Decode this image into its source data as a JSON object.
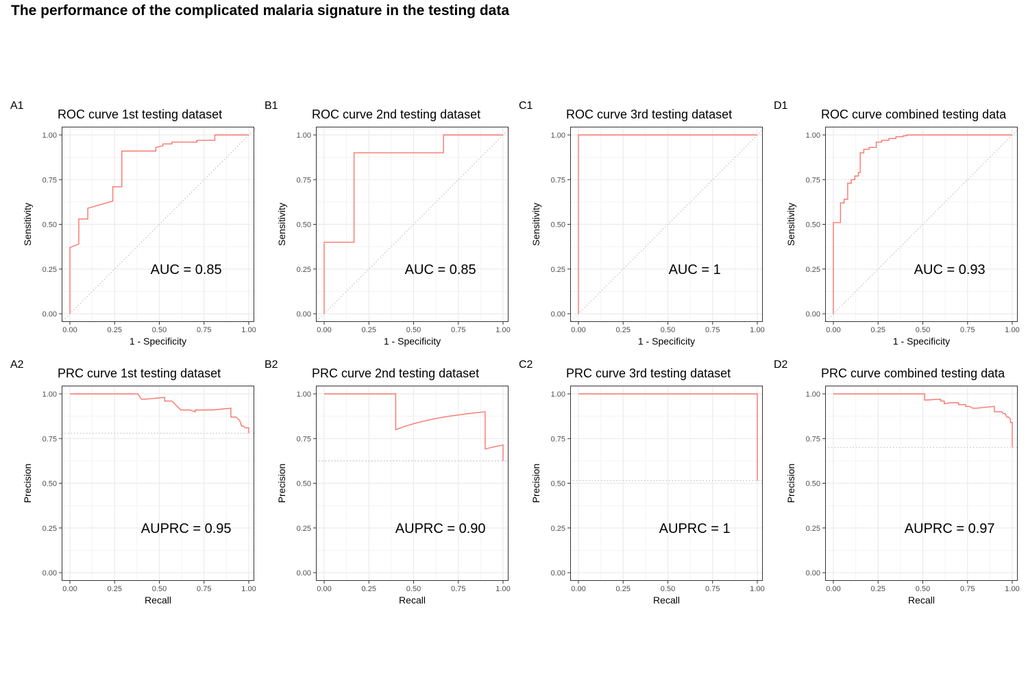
{
  "main_title": "The performance of the complicated malaria signature in the testing data",
  "colors": {
    "curve": "#f8766d",
    "reference": "#bdbdbd",
    "grid_major": "#ebebeb",
    "grid_minor": "#f3f3f3",
    "panel_border": "#333333",
    "tick_text": "#4d4d4d"
  },
  "chart_data": [
    {
      "type": "line",
      "tag": "A1",
      "title": "ROC curve 1st testing dataset",
      "xlabel": "1 - Specificity",
      "ylabel": "Sensitivity",
      "xlim": [
        0,
        1
      ],
      "ylim": [
        0,
        1
      ],
      "xticks": [
        "0.00",
        "0.25",
        "0.50",
        "0.75",
        "1.00"
      ],
      "yticks": [
        "0.00",
        "0.25",
        "0.50",
        "0.75",
        "1.00"
      ],
      "grid": true,
      "annotation": "AUC = 0.85",
      "reference": "diagonal",
      "series": [
        {
          "x": [
            0,
            0,
            0.05,
            0.05,
            0.1,
            0.1,
            0.24,
            0.24,
            0.29,
            0.29,
            0.48,
            0.48,
            0.52,
            0.52,
            0.57,
            0.57,
            0.71,
            0.71,
            0.81,
            0.81,
            1.0
          ],
          "y": [
            0,
            0.37,
            0.39,
            0.53,
            0.53,
            0.59,
            0.63,
            0.71,
            0.71,
            0.91,
            0.91,
            0.93,
            0.94,
            0.95,
            0.95,
            0.96,
            0.96,
            0.97,
            0.97,
            1.0,
            1.0
          ]
        }
      ]
    },
    {
      "type": "line",
      "tag": "B1",
      "title": "ROC curve 2nd testing dataset",
      "xlabel": "1 - Specificity",
      "ylabel": "Sensitivity",
      "xlim": [
        0,
        1
      ],
      "ylim": [
        0,
        1
      ],
      "xticks": [
        "0.00",
        "0.25",
        "0.50",
        "0.75",
        "1.00"
      ],
      "yticks": [
        "0.00",
        "0.25",
        "0.50",
        "0.75",
        "1.00"
      ],
      "grid": true,
      "annotation": "AUC = 0.85",
      "reference": "diagonal",
      "series": [
        {
          "x": [
            0,
            0,
            0.167,
            0.167,
            0.667,
            0.667,
            1.0
          ],
          "y": [
            0,
            0.4,
            0.4,
            0.9,
            0.9,
            1.0,
            1.0
          ]
        }
      ]
    },
    {
      "type": "line",
      "tag": "C1",
      "title": "ROC curve 3rd testing dataset",
      "xlabel": "1 - Specificity",
      "ylabel": "Sensitivity",
      "xlim": [
        0,
        1
      ],
      "ylim": [
        0,
        1
      ],
      "xticks": [
        "0.00",
        "0.25",
        "0.50",
        "0.75",
        "1.00"
      ],
      "yticks": [
        "0.00",
        "0.25",
        "0.50",
        "0.75",
        "1.00"
      ],
      "grid": true,
      "annotation": "AUC = 1",
      "reference": "diagonal",
      "series": [
        {
          "x": [
            0,
            0,
            1.0
          ],
          "y": [
            0,
            1.0,
            1.0
          ]
        }
      ]
    },
    {
      "type": "line",
      "tag": "D1",
      "title": "ROC curve combined testing data",
      "xlabel": "1 - Specificity",
      "ylabel": "Sensitivity",
      "xlim": [
        0,
        1
      ],
      "ylim": [
        0,
        1
      ],
      "xticks": [
        "0.00",
        "0.25",
        "0.50",
        "0.75",
        "1.00"
      ],
      "yticks": [
        "0.00",
        "0.25",
        "0.50",
        "0.75",
        "1.00"
      ],
      "grid": true,
      "annotation": "AUC = 0.93",
      "reference": "diagonal",
      "series": [
        {
          "x": [
            0,
            0,
            0.04,
            0.04,
            0.06,
            0.06,
            0.08,
            0.08,
            0.1,
            0.1,
            0.12,
            0.12,
            0.14,
            0.14,
            0.15,
            0.15,
            0.17,
            0.17,
            0.2,
            0.2,
            0.24,
            0.24,
            0.27,
            0.27,
            0.31,
            0.31,
            0.35,
            0.35,
            0.39,
            0.39,
            0.41,
            0.41,
            1.0
          ],
          "y": [
            0,
            0.51,
            0.51,
            0.62,
            0.62,
            0.64,
            0.64,
            0.73,
            0.73,
            0.75,
            0.75,
            0.77,
            0.77,
            0.79,
            0.79,
            0.9,
            0.9,
            0.92,
            0.92,
            0.93,
            0.93,
            0.96,
            0.96,
            0.97,
            0.97,
            0.98,
            0.98,
            0.99,
            0.99,
            0.995,
            0.995,
            1.0,
            1.0
          ]
        }
      ]
    },
    {
      "type": "line",
      "tag": "A2",
      "title": "PRC curve 1st testing dataset",
      "xlabel": "Recall",
      "ylabel": "Precision",
      "xlim": [
        0,
        1
      ],
      "ylim": [
        0,
        1
      ],
      "xticks": [
        "0.00",
        "0.25",
        "0.50",
        "0.75",
        "1.00"
      ],
      "yticks": [
        "0.00",
        "0.25",
        "0.50",
        "0.75",
        "1.00"
      ],
      "grid": true,
      "annotation": "AUPRC = 0.95",
      "reference": {
        "horizontal": 0.78
      },
      "series": [
        {
          "x": [
            0,
            0.38,
            0.4,
            0.42,
            0.53,
            0.53,
            0.57,
            0.62,
            0.67,
            0.7,
            0.7,
            0.8,
            0.9,
            0.9,
            0.93,
            0.95,
            0.96,
            0.97,
            0.98,
            1.0,
            1.0
          ],
          "y": [
            1.0,
            1.0,
            0.97,
            0.97,
            0.98,
            0.96,
            0.96,
            0.91,
            0.91,
            0.9,
            0.91,
            0.91,
            0.92,
            0.87,
            0.87,
            0.85,
            0.82,
            0.82,
            0.81,
            0.81,
            0.78
          ]
        }
      ]
    },
    {
      "type": "line",
      "tag": "B2",
      "title": "PRC curve 2nd testing dataset",
      "xlabel": "Recall",
      "ylabel": "Precision",
      "xlim": [
        0,
        1
      ],
      "ylim": [
        0,
        1
      ],
      "xticks": [
        "0.00",
        "0.25",
        "0.50",
        "0.75",
        "1.00"
      ],
      "yticks": [
        "0.00",
        "0.25",
        "0.50",
        "0.75",
        "1.00"
      ],
      "grid": true,
      "annotation": "AUPRC = 0.90",
      "reference": {
        "horizontal": 0.625
      },
      "series": [
        {
          "x": [
            0,
            0.4,
            0.4,
            0.45,
            0.5,
            0.55,
            0.6,
            0.65,
            0.7,
            0.75,
            0.8,
            0.85,
            0.9,
            0.9,
            0.95,
            1.0,
            1.0
          ],
          "y": [
            1.0,
            1.0,
            0.8,
            0.818,
            0.833,
            0.846,
            0.857,
            0.867,
            0.875,
            0.882,
            0.889,
            0.895,
            0.9,
            0.692,
            0.704,
            0.714,
            0.625
          ]
        }
      ]
    },
    {
      "type": "line",
      "tag": "C2",
      "title": "PRC curve 3rd testing dataset",
      "xlabel": "Recall",
      "ylabel": "Precision",
      "xlim": [
        0,
        1
      ],
      "ylim": [
        0,
        1
      ],
      "xticks": [
        "0.00",
        "0.25",
        "0.50",
        "0.75",
        "1.00"
      ],
      "yticks": [
        "0.00",
        "0.25",
        "0.50",
        "0.75",
        "1.00"
      ],
      "grid": true,
      "annotation": "AUPRC = 1",
      "reference": {
        "horizontal": 0.515
      },
      "series": [
        {
          "x": [
            0,
            1.0,
            1.0
          ],
          "y": [
            1.0,
            1.0,
            0.515
          ]
        }
      ]
    },
    {
      "type": "line",
      "tag": "D2",
      "title": "PRC curve combined testing data",
      "xlabel": "Recall",
      "ylabel": "Precision",
      "xlim": [
        0,
        1
      ],
      "ylim": [
        0,
        1
      ],
      "xticks": [
        "0.00",
        "0.25",
        "0.50",
        "0.75",
        "1.00"
      ],
      "yticks": [
        "0.00",
        "0.25",
        "0.50",
        "0.75",
        "1.00"
      ],
      "grid": true,
      "annotation": "AUPRC = 0.97",
      "reference": {
        "horizontal": 0.7
      },
      "series": [
        {
          "x": [
            0,
            0.51,
            0.51,
            0.6,
            0.6,
            0.62,
            0.62,
            0.65,
            0.7,
            0.7,
            0.74,
            0.74,
            0.76,
            0.78,
            0.8,
            0.85,
            0.9,
            0.9,
            0.94,
            0.95,
            0.96,
            0.97,
            0.98,
            0.99,
            0.99,
            1.0,
            1.0
          ],
          "y": [
            1.0,
            1.0,
            0.965,
            0.97,
            0.96,
            0.96,
            0.945,
            0.95,
            0.95,
            0.94,
            0.94,
            0.93,
            0.93,
            0.92,
            0.92,
            0.925,
            0.93,
            0.9,
            0.9,
            0.89,
            0.89,
            0.87,
            0.87,
            0.86,
            0.84,
            0.84,
            0.7
          ]
        }
      ]
    }
  ]
}
